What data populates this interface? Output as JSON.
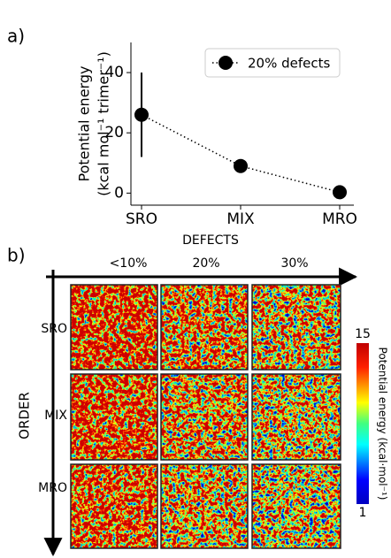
{
  "chart_data": {
    "type": "line",
    "panel_label": "a)",
    "ylabel": [
      "Potential energy",
      "(kcal mol⁻¹ trimer⁻¹)"
    ],
    "categories": [
      "SRO",
      "MIX",
      "MRO"
    ],
    "series": [
      {
        "name": "20% defects",
        "color": "#000000",
        "values": [
          26,
          9,
          0.3
        ],
        "errors": [
          14,
          null,
          null
        ]
      }
    ],
    "ylim": [
      -4,
      50
    ],
    "yticks": [
      0,
      20,
      40
    ],
    "legend": "upper right"
  },
  "panel_b": {
    "panel_label": "b)",
    "column_title": "DEFECTS",
    "columns": [
      "<10%",
      "20%",
      "30%"
    ],
    "row_title": "ORDER",
    "rows": [
      "SRO",
      "MIX",
      "MRO"
    ],
    "colorbar": {
      "label": "Potential energy (kcal·mol⁻¹)",
      "lim": [
        1,
        15
      ],
      "ticks": [
        1,
        15
      ]
    }
  }
}
